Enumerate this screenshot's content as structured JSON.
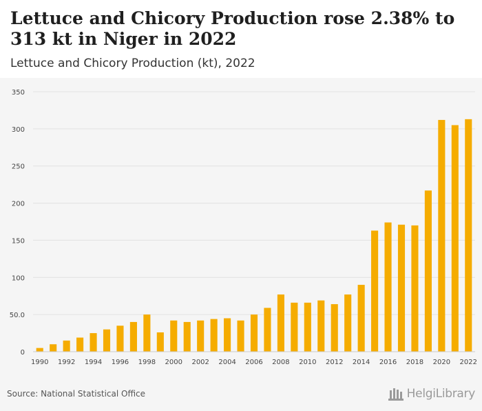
{
  "header": {
    "title": "Lettuce and Chicory Production rose 2.38% to 313 kt in Niger in 2022",
    "subtitle": "Lettuce and Chicory Production (kt), 2022"
  },
  "footer": {
    "source": "Source: National Statistical Office",
    "logo_text": "HelgiLibrary"
  },
  "colors": {
    "bar": "#f5ac00",
    "grid": "#e2e2e2",
    "axis_text": "#444444"
  },
  "chart_data": {
    "type": "bar",
    "title": "Lettuce and Chicory Production (kt), 2022",
    "xlabel": "",
    "ylabel": "",
    "ylim": [
      0,
      350
    ],
    "yticks": [
      "0",
      "50.0",
      "100",
      "150",
      "200",
      "250",
      "300",
      "350"
    ],
    "ytick_values": [
      0,
      50,
      100,
      150,
      200,
      250,
      300,
      350
    ],
    "xtick_labels": [
      "1990",
      "1992",
      "1994",
      "1996",
      "1998",
      "2000",
      "2002",
      "2004",
      "2006",
      "2008",
      "2010",
      "2012",
      "2014",
      "2016",
      "2018",
      "2020",
      "2022"
    ],
    "grid": true,
    "categories": [
      "1990",
      "1991",
      "1992",
      "1993",
      "1994",
      "1995",
      "1996",
      "1997",
      "1998",
      "1999",
      "2000",
      "2001",
      "2002",
      "2003",
      "2004",
      "2005",
      "2006",
      "2007",
      "2008",
      "2009",
      "2010",
      "2011",
      "2012",
      "2013",
      "2014",
      "2015",
      "2016",
      "2017",
      "2018",
      "2019",
      "2020",
      "2021",
      "2022"
    ],
    "values": [
      5,
      10,
      15,
      19,
      25,
      30,
      35,
      40,
      50,
      26,
      42,
      40,
      42,
      44,
      45,
      42,
      50,
      59,
      77,
      66,
      66,
      69,
      64,
      77,
      90,
      163,
      174,
      171,
      170,
      217,
      312,
      305,
      313
    ]
  }
}
